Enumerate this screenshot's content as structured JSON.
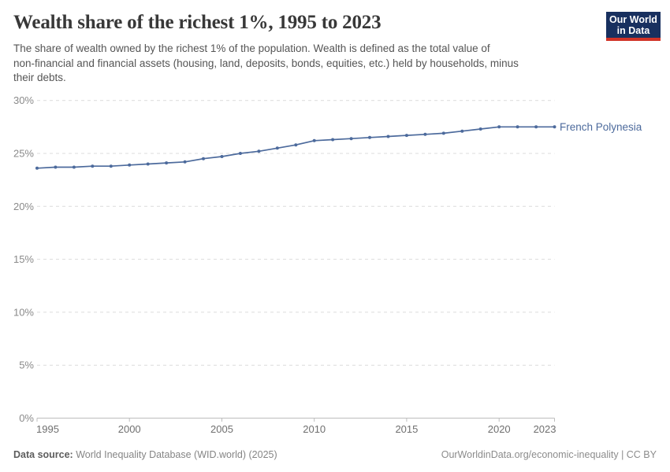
{
  "header": {
    "title": "Wealth share of the richest 1%, 1995 to 2023",
    "subtitle_lines": [
      "The share of wealth owned by the richest 1% of the population. Wealth is defined as the total value of",
      "non-financial and financial assets (housing, land, deposits, bonds, equities, etc.) held by households, minus",
      "their debts."
    ],
    "logo": {
      "line1": "Our World",
      "line2": "in Data"
    }
  },
  "chart_data": {
    "type": "line",
    "title": "Wealth share of the richest 1%, 1995 to 2023",
    "xlabel": "",
    "ylabel": "",
    "x": [
      1995,
      1996,
      1997,
      1998,
      1999,
      2000,
      2001,
      2002,
      2003,
      2004,
      2005,
      2006,
      2007,
      2008,
      2009,
      2010,
      2011,
      2012,
      2013,
      2014,
      2015,
      2016,
      2017,
      2018,
      2019,
      2020,
      2021,
      2022,
      2023
    ],
    "series": [
      {
        "name": "French Polynesia",
        "color": "#4C6A9C",
        "values": [
          23.6,
          23.7,
          23.7,
          23.8,
          23.8,
          23.9,
          24.0,
          24.1,
          24.2,
          24.5,
          24.7,
          25.0,
          25.2,
          25.5,
          25.8,
          26.2,
          26.3,
          26.4,
          26.5,
          26.6,
          26.7,
          26.8,
          26.9,
          27.1,
          27.3,
          27.5,
          27.5,
          27.5,
          27.5
        ]
      }
    ],
    "ylim": [
      0,
      30
    ],
    "yticks": [
      0,
      5,
      10,
      15,
      20,
      25,
      30
    ],
    "ytick_suffix": "%",
    "xticks": [
      1995,
      2000,
      2005,
      2010,
      2015,
      2020,
      2023
    ],
    "grid": "horizontal-dashed",
    "legend": "end-of-line-label"
  },
  "footer": {
    "source_label": "Data source:",
    "source_value": " World Inequality Database (WID.world) (2025)",
    "credit": "OurWorldinData.org/economic-inequality | CC BY"
  },
  "colors": {
    "line": "#4C6A9C",
    "grid": "#dcdcdc",
    "axis": "#bdbdbd",
    "logo_navy": "#18305F",
    "logo_red": "#D13327"
  }
}
